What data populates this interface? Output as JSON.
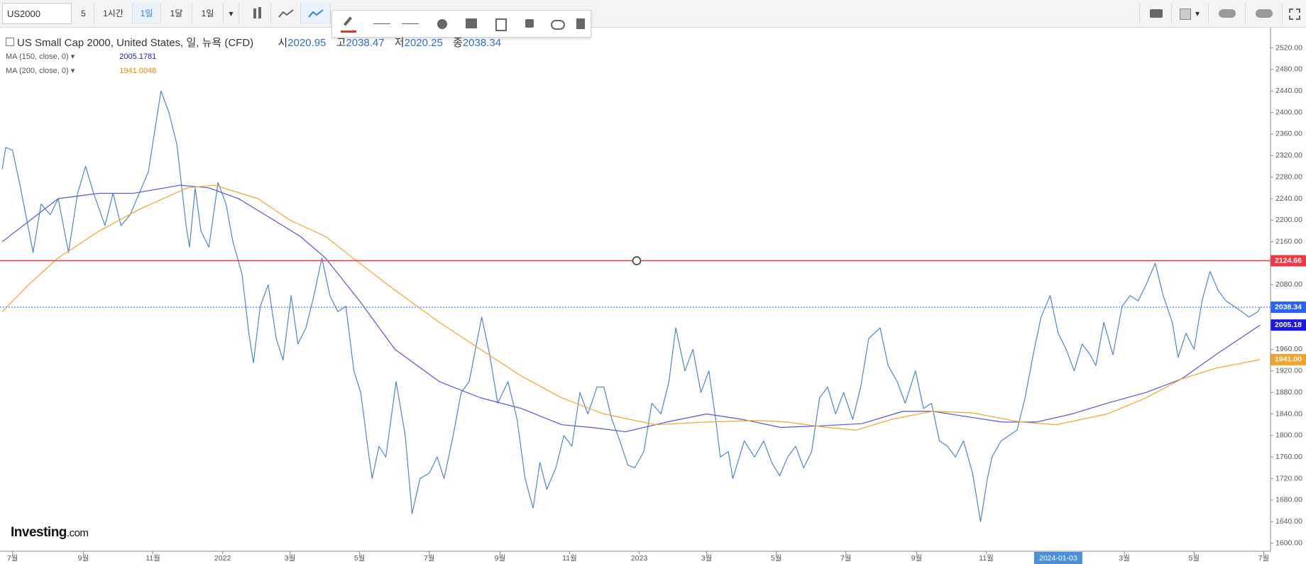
{
  "toolbar": {
    "symbol": "US2000",
    "intervals": [
      "5",
      "1시간",
      "1일",
      "1달",
      "1일"
    ]
  },
  "legend": {
    "title": "US Small Cap 2000, United States, 일, 뉴욕 (CFD)",
    "ohlc": [
      {
        "label": "시",
        "value": 2020.95
      },
      {
        "label": "고",
        "value": 2038.47
      },
      {
        "label": "저",
        "value": 2020.25
      },
      {
        "label": "종",
        "value": 2038.34
      }
    ]
  },
  "logo": {
    "name": "Investing",
    "suffix": ".com"
  },
  "chart_data": {
    "type": "line",
    "xlim": [
      "2021-06-20",
      "2024-07-07"
    ],
    "ylim": [
      1585,
      2555
    ],
    "xticks": [
      {
        "value": "2021-07-01",
        "label": "7월"
      },
      {
        "value": "2021-09-01",
        "label": "9월"
      },
      {
        "value": "2021-11-01",
        "label": "11월"
      },
      {
        "value": "2022-01-01",
        "label": "2022"
      },
      {
        "value": "2022-03-01",
        "label": "3월"
      },
      {
        "value": "2022-05-01",
        "label": "5월"
      },
      {
        "value": "2022-07-01",
        "label": "7월"
      },
      {
        "value": "2022-09-01",
        "label": "9월"
      },
      {
        "value": "2022-11-01",
        "label": "11월"
      },
      {
        "value": "2023-01-01",
        "label": "2023"
      },
      {
        "value": "2023-03-01",
        "label": "3월"
      },
      {
        "value": "2023-05-01",
        "label": "5월"
      },
      {
        "value": "2023-07-01",
        "label": "7월"
      },
      {
        "value": "2023-09-01",
        "label": "9월"
      },
      {
        "value": "2023-11-01",
        "label": "11월"
      },
      {
        "value": "2024-03-01",
        "label": "3월"
      },
      {
        "value": "2024-05-01",
        "label": "5월"
      },
      {
        "value": "2024-07-01",
        "label": "7월"
      }
    ],
    "crosshair_x": "2024-01-03",
    "yticks": [
      {
        "value": 1600,
        "label": "1600.00"
      },
      {
        "value": 1640,
        "label": "1640.00"
      },
      {
        "value": 1680,
        "label": "1680.00"
      },
      {
        "value": 1720,
        "label": "1720.00"
      },
      {
        "value": 1760,
        "label": "1760.00"
      },
      {
        "value": 1800,
        "label": "1800.00"
      },
      {
        "value": 1840,
        "label": "1840.00"
      },
      {
        "value": 1880,
        "label": "1880.00"
      },
      {
        "value": 1920,
        "label": "1920.00"
      },
      {
        "value": 1960,
        "label": "1960.00"
      },
      {
        "value": 2000,
        "label": "2000.00"
      },
      {
        "value": 2040,
        "label": "2040.00"
      },
      {
        "value": 2080,
        "label": "2080.00"
      },
      {
        "value": 2120,
        "label": "2120.00"
      },
      {
        "value": 2160,
        "label": "2160.00"
      },
      {
        "value": 2200,
        "label": "2200.00"
      },
      {
        "value": 2240,
        "label": "2240.00"
      },
      {
        "value": 2280,
        "label": "2280.00"
      },
      {
        "value": 2320,
        "label": "2320.00"
      },
      {
        "value": 2360,
        "label": "2360.00"
      },
      {
        "value": 2400,
        "label": "2400.00"
      },
      {
        "value": 2440,
        "label": "2440.00"
      },
      {
        "value": 2480,
        "label": "2480.00"
      },
      {
        "value": 2520,
        "label": "2520.00"
      }
    ],
    "series": [
      {
        "color": "#4a86d8",
        "width": 1.2,
        "x": [
          "2021-06-22",
          "2021-06-25",
          "2021-07-01",
          "2021-07-08",
          "2021-07-19",
          "2021-07-26",
          "2021-08-03",
          "2021-08-10",
          "2021-08-19",
          "2021-08-27",
          "2021-09-03",
          "2021-09-10",
          "2021-09-20",
          "2021-09-27",
          "2021-10-04",
          "2021-10-12",
          "2021-10-22",
          "2021-10-28",
          "2021-11-08",
          "2021-11-15",
          "2021-11-22",
          "2021-11-30",
          "2021-12-03",
          "2021-12-08",
          "2021-12-13",
          "2021-12-20",
          "2021-12-28",
          "2022-01-04",
          "2022-01-10",
          "2022-01-18",
          "2022-01-24",
          "2022-01-28",
          "2022-02-03",
          "2022-02-10",
          "2022-02-17",
          "2022-02-23",
          "2022-03-02",
          "2022-03-08",
          "2022-03-15",
          "2022-03-22",
          "2022-03-29",
          "2022-04-05",
          "2022-04-12",
          "2022-04-19",
          "2022-04-26",
          "2022-05-02",
          "2022-05-09",
          "2022-05-12",
          "2022-05-18",
          "2022-05-24",
          "2022-06-02",
          "2022-06-10",
          "2022-06-16",
          "2022-06-23",
          "2022-07-01",
          "2022-07-08",
          "2022-07-14",
          "2022-07-22",
          "2022-07-29",
          "2022-08-05",
          "2022-08-16",
          "2022-08-23",
          "2022-08-30",
          "2022-09-08",
          "2022-09-16",
          "2022-09-23",
          "2022-09-30",
          "2022-10-06",
          "2022-10-12",
          "2022-10-20",
          "2022-10-27",
          "2022-11-03",
          "2022-11-10",
          "2022-11-17",
          "2022-11-25",
          "2022-12-01",
          "2022-12-08",
          "2022-12-15",
          "2022-12-22",
          "2022-12-28",
          "2023-01-05",
          "2023-01-12",
          "2023-01-20",
          "2023-01-27",
          "2023-02-02",
          "2023-02-10",
          "2023-02-17",
          "2023-02-24",
          "2023-03-03",
          "2023-03-09",
          "2023-03-13",
          "2023-03-20",
          "2023-03-24",
          "2023-04-03",
          "2023-04-12",
          "2023-04-20",
          "2023-04-27",
          "2023-05-04",
          "2023-05-11",
          "2023-05-18",
          "2023-05-25",
          "2023-06-01",
          "2023-06-08",
          "2023-06-15",
          "2023-06-22",
          "2023-06-29",
          "2023-07-07",
          "2023-07-14",
          "2023-07-21",
          "2023-07-31",
          "2023-08-07",
          "2023-08-15",
          "2023-08-22",
          "2023-08-31",
          "2023-09-07",
          "2023-09-14",
          "2023-09-21",
          "2023-09-28",
          "2023-10-05",
          "2023-10-12",
          "2023-10-20",
          "2023-10-27",
          "2023-11-02",
          "2023-11-06",
          "2023-11-14",
          "2023-11-21",
          "2023-11-28",
          "2023-12-05",
          "2023-12-13",
          "2023-12-19",
          "2023-12-27",
          "2024-01-03",
          "2024-01-10",
          "2024-01-17",
          "2024-01-24",
          "2024-01-31",
          "2024-02-05",
          "2024-02-12",
          "2024-02-20",
          "2024-02-28",
          "2024-03-06",
          "2024-03-13",
          "2024-03-20",
          "2024-03-28",
          "2024-04-04",
          "2024-04-12",
          "2024-04-17",
          "2024-04-24",
          "2024-05-01",
          "2024-05-08",
          "2024-05-15",
          "2024-05-22",
          "2024-05-29",
          "2024-06-05",
          "2024-06-12",
          "2024-06-18",
          "2024-06-26",
          "2024-06-28"
        ],
        "values": [
          2295,
          2335,
          2330,
          2260,
          2140,
          2230,
          2210,
          2240,
          2140,
          2250,
          2300,
          2250,
          2190,
          2250,
          2190,
          2210,
          2260,
          2290,
          2440,
          2400,
          2340,
          2190,
          2150,
          2260,
          2180,
          2150,
          2270,
          2230,
          2160,
          2100,
          1990,
          1935,
          2040,
          2080,
          1980,
          1940,
          2060,
          1970,
          2000,
          2060,
          2130,
          2060,
          2030,
          2040,
          1920,
          1880,
          1765,
          1720,
          1780,
          1760,
          1900,
          1800,
          1655,
          1720,
          1730,
          1760,
          1720,
          1800,
          1880,
          1900,
          2020,
          1950,
          1860,
          1900,
          1830,
          1720,
          1665,
          1750,
          1700,
          1740,
          1800,
          1780,
          1880,
          1840,
          1890,
          1890,
          1830,
          1790,
          1745,
          1740,
          1770,
          1860,
          1840,
          1900,
          2000,
          1920,
          1960,
          1880,
          1920,
          1830,
          1760,
          1770,
          1720,
          1790,
          1760,
          1790,
          1750,
          1725,
          1760,
          1780,
          1740,
          1770,
          1870,
          1890,
          1840,
          1880,
          1830,
          1890,
          1980,
          2000,
          1930,
          1900,
          1860,
          1920,
          1850,
          1860,
          1790,
          1780,
          1760,
          1790,
          1730,
          1640,
          1720,
          1760,
          1790,
          1800,
          1810,
          1870,
          1960,
          2020,
          2060,
          1990,
          1960,
          1920,
          1970,
          1950,
          1930,
          2010,
          1950,
          2040,
          2060,
          2050,
          2080,
          2120,
          2060,
          2010,
          1945,
          1990,
          1960,
          2050,
          2105,
          2070,
          2050,
          2040,
          2030,
          2020,
          2030,
          2038.34
        ]
      },
      {
        "name": "MA (150, close, 0)",
        "legend_value": 2005.1781,
        "color": "#5454e0",
        "width": 1.2,
        "x": [
          "2021-06-22",
          "2021-08-10",
          "2021-09-15",
          "2021-10-15",
          "2021-11-25",
          "2021-12-20",
          "2022-01-15",
          "2022-02-15",
          "2022-03-10",
          "2022-04-01",
          "2022-05-01",
          "2022-06-01",
          "2022-07-10",
          "2022-08-15",
          "2022-09-20",
          "2022-10-25",
          "2022-11-20",
          "2022-12-20",
          "2023-01-25",
          "2023-03-01",
          "2023-04-01",
          "2023-05-05",
          "2023-06-10",
          "2023-07-15",
          "2023-08-20",
          "2023-09-15",
          "2023-10-15",
          "2023-11-15",
          "2023-12-15",
          "2024-01-15",
          "2024-02-15",
          "2024-03-20",
          "2024-04-20",
          "2024-05-20",
          "2024-06-28"
        ],
        "values": [
          2160,
          2240,
          2250,
          2250,
          2265,
          2260,
          2240,
          2200,
          2170,
          2130,
          2050,
          1960,
          1900,
          1870,
          1850,
          1820,
          1815,
          1807,
          1825,
          1840,
          1830,
          1815,
          1818,
          1822,
          1845,
          1845,
          1835,
          1825,
          1825,
          1840,
          1860,
          1880,
          1905,
          1950,
          2005.18
        ]
      },
      {
        "name": "MA (200, close, 0)",
        "legend_value": 1941.0048,
        "color": "#f5a328",
        "width": 1.2,
        "x": [
          "2021-06-22",
          "2021-07-15",
          "2021-08-10",
          "2021-09-15",
          "2021-10-20",
          "2021-12-01",
          "2021-12-25",
          "2022-02-01",
          "2022-03-01",
          "2022-04-01",
          "2022-05-01",
          "2022-06-01",
          "2022-07-10",
          "2022-08-15",
          "2022-09-20",
          "2022-10-25",
          "2022-12-01",
          "2023-01-15",
          "2023-03-01",
          "2023-04-15",
          "2023-05-10",
          "2023-06-15",
          "2023-07-10",
          "2023-08-10",
          "2023-09-15",
          "2023-10-20",
          "2023-12-01",
          "2024-01-01",
          "2024-02-15",
          "2024-03-20",
          "2024-04-20",
          "2024-05-20",
          "2024-06-28"
        ],
        "values": [
          2030,
          2080,
          2130,
          2180,
          2220,
          2260,
          2265,
          2240,
          2200,
          2170,
          2120,
          2070,
          2010,
          1960,
          1910,
          1870,
          1840,
          1820,
          1825,
          1828,
          1825,
          1815,
          1810,
          1830,
          1845,
          1842,
          1825,
          1820,
          1840,
          1870,
          1905,
          1925,
          1941
        ]
      }
    ],
    "hlines": [
      {
        "value": 2124.66,
        "color": "#f23645",
        "style": "solid"
      },
      {
        "value": 2038.34,
        "color": "#2962ff",
        "style": "dotted"
      }
    ],
    "price_markers": [
      {
        "value": 2005.18,
        "color": "#1a1ae6"
      },
      {
        "value": 1941,
        "label": "1941.00",
        "color": "#f5a328"
      }
    ]
  }
}
